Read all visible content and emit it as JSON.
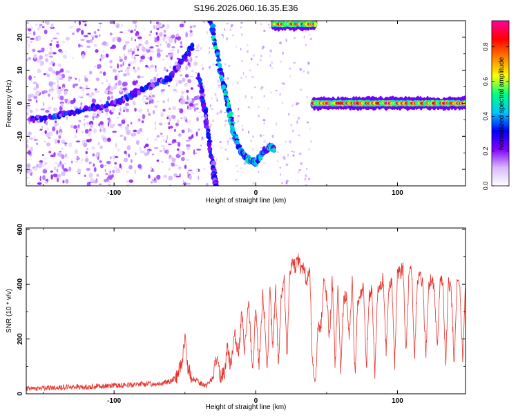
{
  "title": "S196.2026.060.16.35.E36",
  "colorbar": {
    "label": "Normalized spectral amplitude",
    "ticks": [
      "0.0",
      "0.2",
      "0.4",
      "0.6",
      "0.8"
    ],
    "tick_values": [
      0.0,
      0.2,
      0.4,
      0.6,
      0.8
    ],
    "range": [
      0,
      0.95
    ],
    "colors": [
      "#ffffff",
      "#d8b8ff",
      "#8000ff",
      "#0000ff",
      "#00c8ff",
      "#00ff80",
      "#ffff00",
      "#ff8000",
      "#ff0000",
      "#ff00a0"
    ]
  },
  "chart_data": [
    {
      "type": "heatmap",
      "xlabel": "Height of straight line (km)",
      "ylabel": "Frequency (Hz)",
      "xlim": [
        -162,
        148
      ],
      "ylim": [
        -25,
        25
      ],
      "x_ticks": [
        "-100",
        "0",
        "100"
      ],
      "x_tick_values": [
        -100,
        0,
        100
      ],
      "y_ticks": [
        "20",
        "10",
        "0",
        "-10",
        "-20"
      ],
      "y_tick_values": [
        20,
        10,
        0,
        -10,
        -20
      ],
      "features": [
        {
          "name": "noise cloud",
          "x_range": [
            -162,
            -40
          ],
          "y_range": [
            -25,
            25
          ],
          "amplitude": 0.1
        },
        {
          "name": "rising track",
          "points": [
            [
              -160,
              -5
            ],
            [
              -130,
              -3
            ],
            [
              -100,
              0
            ],
            [
              -80,
              4
            ],
            [
              -60,
              8
            ],
            [
              -45,
              17
            ]
          ],
          "amplitude": 0.25
        },
        {
          "name": "falling track",
          "points": [
            [
              -40,
              8
            ],
            [
              -35,
              -5
            ],
            [
              -30,
              -20
            ],
            [
              -28,
              -25
            ]
          ],
          "amplitude": 0.25
        },
        {
          "name": "curved track",
          "points": [
            [
              -32,
              25
            ],
            [
              -25,
              10
            ],
            [
              -20,
              0
            ],
            [
              -15,
              -10
            ],
            [
              -10,
              -15
            ],
            [
              -5,
              -17
            ],
            [
              0,
              -18
            ],
            [
              5,
              -15
            ],
            [
              10,
              -13
            ],
            [
              13,
              -14
            ]
          ],
          "amplitude": 0.35
        },
        {
          "name": "top band",
          "x_range": [
            12,
            42
          ],
          "y": 24,
          "amplitude": 0.85
        },
        {
          "name": "zero band",
          "x_range": [
            40,
            148
          ],
          "y": 0,
          "amplitude": 0.9
        }
      ]
    },
    {
      "type": "line",
      "xlabel": "Height of straight line (km)",
      "ylabel": "SNR (10 * v/v)",
      "xlim": [
        -162,
        148
      ],
      "ylim": [
        0,
        605
      ],
      "x_ticks": [
        "-100",
        "0",
        "100"
      ],
      "x_tick_values": [
        -100,
        0,
        100
      ],
      "y_ticks": [
        "0",
        "200",
        "400",
        "600"
      ],
      "y_tick_values": [
        0,
        200,
        400,
        600
      ],
      "color": "#e8322b",
      "series": [
        {
          "x": [
            -162,
            -150,
            -140,
            -130,
            -120,
            -110,
            -100,
            -90,
            -80,
            -70,
            -60,
            -55,
            -52,
            -50,
            -48,
            -45,
            -40,
            -35,
            -30,
            -28,
            -25,
            -22,
            -20,
            -18,
            -15,
            -12,
            -10,
            -8,
            -5,
            -3,
            -2,
            0,
            2,
            3,
            5,
            7,
            8,
            10,
            12,
            14,
            16,
            18,
            20,
            22,
            24,
            26,
            28,
            30,
            32,
            34,
            36,
            38,
            40,
            42,
            44,
            46,
            48,
            50,
            52,
            54,
            56,
            58,
            60,
            62,
            64,
            66,
            68,
            70,
            72,
            74,
            76,
            78,
            80,
            82,
            84,
            86,
            88,
            90,
            92,
            94,
            96,
            98,
            100,
            102,
            104,
            106,
            108,
            110,
            112,
            114,
            116,
            118,
            120,
            122,
            124,
            126,
            128,
            130,
            132,
            134,
            136,
            138,
            140,
            142,
            144,
            146,
            148
          ],
          "y": [
            18,
            20,
            22,
            25,
            25,
            28,
            30,
            32,
            35,
            38,
            45,
            70,
            120,
            200,
            90,
            60,
            40,
            30,
            60,
            130,
            60,
            80,
            180,
            100,
            220,
            150,
            300,
            160,
            330,
            150,
            80,
            330,
            100,
            150,
            360,
            200,
            80,
            380,
            150,
            400,
            100,
            360,
            430,
            120,
            450,
            480,
            460,
            490,
            450,
            470,
            400,
            460,
            100,
            40,
            250,
            250,
            420,
            350,
            200,
            420,
            100,
            400,
            70,
            350,
            360,
            200,
            430,
            60,
            340,
            360,
            400,
            80,
            360,
            380,
            60,
            370,
            390,
            420,
            150,
            380,
            420,
            100,
            450,
            440,
            460,
            130,
            420,
            460,
            120,
            420,
            430,
            400,
            140,
            400,
            420,
            380,
            160,
            420,
            400,
            100,
            410,
            380,
            100,
            400,
            390,
            120,
            400
          ]
        }
      ]
    }
  ]
}
